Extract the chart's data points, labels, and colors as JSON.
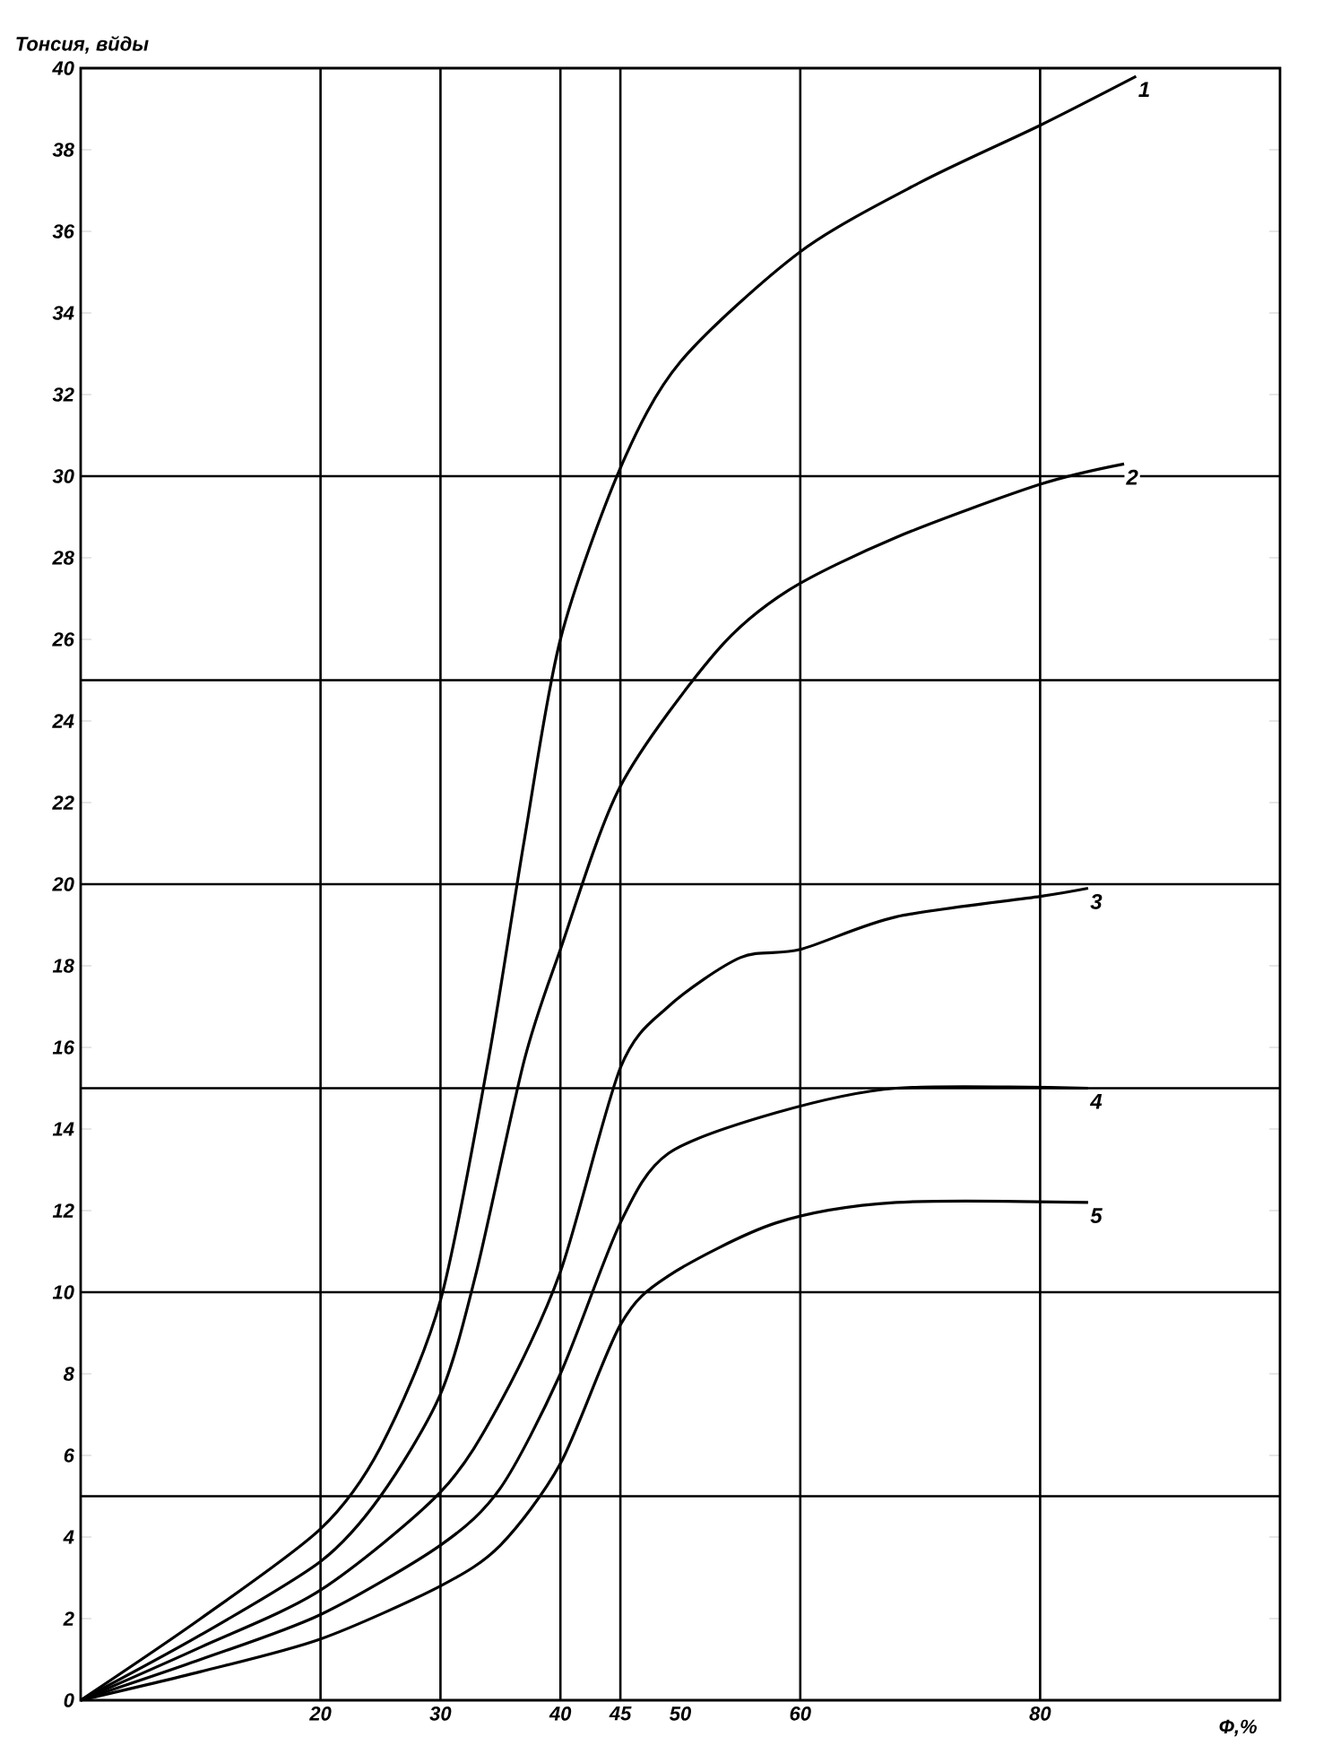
{
  "chart_data": {
    "type": "line",
    "ylabel": "Тонсия, вйды",
    "xlabel": "Ф,%",
    "xlim": [
      0,
      100
    ],
    "ylim": [
      0,
      40
    ],
    "xticks": [
      20,
      30,
      40,
      45,
      50,
      60,
      80
    ],
    "yticks": [
      0,
      2,
      4,
      6,
      8,
      10,
      12,
      14,
      16,
      18,
      20,
      22,
      24,
      26,
      28,
      30,
      32,
      34,
      36,
      38,
      40
    ],
    "ref_lines": [
      {
        "axis": "x",
        "value": 20
      },
      {
        "axis": "x",
        "value": 30
      },
      {
        "axis": "x",
        "value": 40
      },
      {
        "axis": "x",
        "value": 45
      },
      {
        "axis": "x",
        "value": 60
      },
      {
        "axis": "x",
        "value": 80
      },
      {
        "axis": "y",
        "value": 5
      },
      {
        "axis": "y",
        "value": 10
      },
      {
        "axis": "y",
        "value": 15
      },
      {
        "axis": "y",
        "value": 20
      },
      {
        "axis": "y",
        "value": 25
      },
      {
        "axis": "y",
        "value": 30
      }
    ],
    "line_style": "solid",
    "marker": "none",
    "series": [
      {
        "name": "1",
        "color": "#000000",
        "x": [
          0,
          10,
          20,
          25,
          30,
          34,
          37,
          40,
          45,
          50,
          60,
          70,
          80,
          88
        ],
        "values": [
          0,
          2,
          4.2,
          6.2,
          9.8,
          15.7,
          21.1,
          26,
          30.2,
          32.8,
          35.5,
          37.2,
          38.6,
          39.8
        ]
      },
      {
        "name": "2",
        "color": "#000000",
        "x": [
          0,
          10,
          20,
          25,
          30,
          33,
          37,
          40,
          45,
          53,
          59,
          68,
          80,
          87
        ],
        "values": [
          0,
          1.6,
          3.4,
          5,
          7.5,
          10.5,
          15.7,
          18.4,
          22.4,
          25.7,
          27.2,
          28.5,
          29.8,
          30.3
        ]
      },
      {
        "name": "3",
        "color": "#000000",
        "x": [
          0,
          10,
          20,
          30,
          35,
          40,
          45,
          49,
          55,
          60,
          68,
          80,
          84
        ],
        "values": [
          0,
          1.3,
          2.7,
          5.1,
          7.3,
          10.5,
          15.5,
          17,
          18.2,
          18.4,
          19.2,
          19.7,
          19.9
        ]
      },
      {
        "name": "4",
        "color": "#000000",
        "x": [
          0,
          10,
          20,
          30,
          35,
          40,
          45,
          49,
          58,
          68,
          84
        ],
        "values": [
          0,
          1,
          2.1,
          3.8,
          5.2,
          8,
          11.7,
          13.4,
          14.4,
          15,
          15
        ]
      },
      {
        "name": "5",
        "color": "#000000",
        "x": [
          0,
          10,
          20,
          30,
          35,
          40,
          45,
          49,
          58,
          68,
          84
        ],
        "values": [
          0,
          0.7,
          1.5,
          2.8,
          3.8,
          5.8,
          9.2,
          10.4,
          11.7,
          12.2,
          12.2
        ]
      }
    ]
  }
}
